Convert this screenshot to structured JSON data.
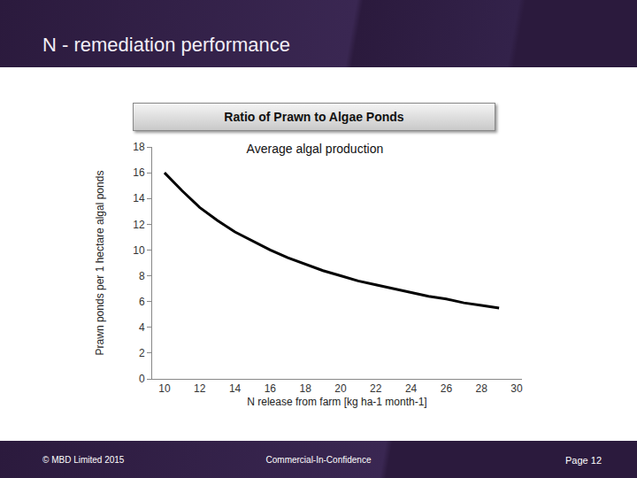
{
  "slide": {
    "heading": "N - remediation performance",
    "footer_left": "© MBD Limited 2015",
    "footer_center": "Commercial-In-Confidence",
    "footer_right": "Page 12"
  },
  "chart_data": {
    "type": "line",
    "title": "Ratio of Prawn to Algae Ponds",
    "subtitle": "Average algal production",
    "x_label": "N release from farm [kg ha-1 month-1]",
    "y_label": "Prawn ponds per 1 hectare algal ponds",
    "x": [
      10,
      11,
      12,
      13,
      14,
      15,
      16,
      17,
      18,
      19,
      20,
      21,
      22,
      23,
      24,
      25,
      26,
      27,
      28,
      29
    ],
    "values": [
      16.0,
      14.6,
      13.3,
      12.3,
      11.4,
      10.7,
      10.0,
      9.4,
      8.9,
      8.4,
      8.0,
      7.6,
      7.3,
      7.0,
      6.7,
      6.4,
      6.2,
      5.9,
      5.7,
      5.5
    ],
    "color": "#000000",
    "xlim": [
      9.3,
      30.3
    ],
    "xticks": [
      10,
      12,
      14,
      16,
      18,
      20,
      22,
      24,
      26,
      28,
      30
    ],
    "ylim": [
      0,
      18
    ],
    "yticks": [
      0,
      2,
      4,
      6,
      8,
      10,
      12,
      14,
      16,
      18
    ],
    "grid": false
  }
}
